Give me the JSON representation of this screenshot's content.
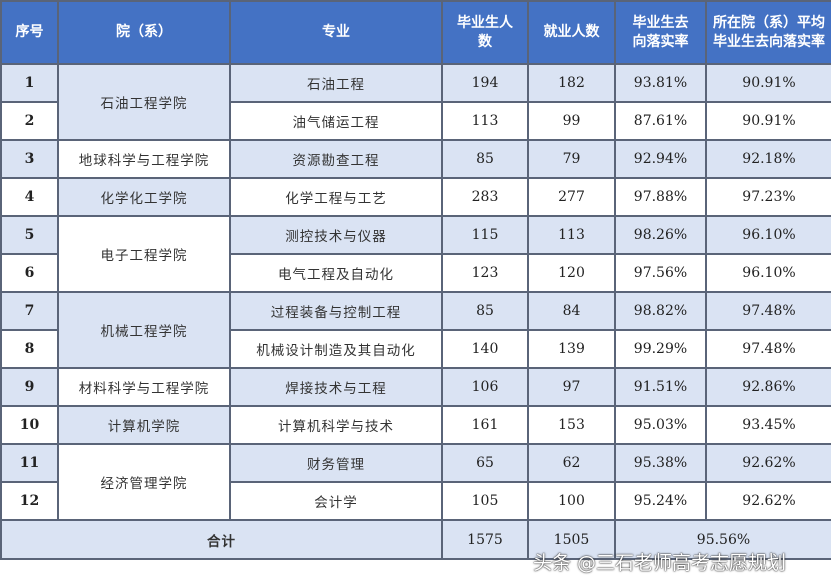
{
  "table": {
    "headers": [
      "序号",
      "院（系）",
      "专业",
      "毕业生人数",
      "就业人数",
      "毕业生去向落实率",
      "所在院（系）平均毕业生去向落实率"
    ],
    "colleges": [
      {
        "name": "石油工程学院",
        "rows": [
          {
            "no": "1",
            "major": "石油工程",
            "grads": "194",
            "employed": "182",
            "rate": "93.81%",
            "avg": "90.91%"
          },
          {
            "no": "2",
            "major": "油气储运工程",
            "grads": "113",
            "employed": "99",
            "rate": "87.61%",
            "avg": "90.91%"
          }
        ]
      },
      {
        "name": "地球科学与工程学院",
        "rows": [
          {
            "no": "3",
            "major": "资源勘查工程",
            "grads": "85",
            "employed": "79",
            "rate": "92.94%",
            "avg": "92.18%"
          }
        ]
      },
      {
        "name": "化学化工学院",
        "rows": [
          {
            "no": "4",
            "major": "化学工程与工艺",
            "grads": "283",
            "employed": "277",
            "rate": "97.88%",
            "avg": "97.23%"
          }
        ]
      },
      {
        "name": "电子工程学院",
        "rows": [
          {
            "no": "5",
            "major": "测控技术与仪器",
            "grads": "115",
            "employed": "113",
            "rate": "98.26%",
            "avg": "96.10%"
          },
          {
            "no": "6",
            "major": "电气工程及自动化",
            "grads": "123",
            "employed": "120",
            "rate": "97.56%",
            "avg": "96.10%"
          }
        ]
      },
      {
        "name": "机械工程学院",
        "rows": [
          {
            "no": "7",
            "major": "过程装备与控制工程",
            "grads": "85",
            "employed": "84",
            "rate": "98.82%",
            "avg": "97.48%"
          },
          {
            "no": "8",
            "major": "机械设计制造及其自动化",
            "grads": "140",
            "employed": "139",
            "rate": "99.29%",
            "avg": "97.48%"
          }
        ]
      },
      {
        "name": "材料科学与工程学院",
        "rows": [
          {
            "no": "9",
            "major": "焊接技术与工程",
            "grads": "106",
            "employed": "97",
            "rate": "91.51%",
            "avg": "92.86%"
          }
        ]
      },
      {
        "name": "计算机学院",
        "rows": [
          {
            "no": "10",
            "major": "计算机科学与技术",
            "grads": "161",
            "employed": "153",
            "rate": "95.03%",
            "avg": "93.45%"
          }
        ]
      },
      {
        "name": "经济管理学院",
        "rows": [
          {
            "no": "11",
            "major": "财务管理",
            "grads": "65",
            "employed": "62",
            "rate": "95.38%",
            "avg": "92.62%"
          },
          {
            "no": "12",
            "major": "会计学",
            "grads": "105",
            "employed": "100",
            "rate": "95.24%",
            "avg": "92.62%"
          }
        ]
      }
    ],
    "total": {
      "label": "合计",
      "grads": "1575",
      "employed": "1505",
      "rate": "95.56%"
    }
  },
  "watermark": "头条 @三石老师高考志愿规划",
  "colors": {
    "header": "#4472c4",
    "band": "#dae3f3"
  }
}
